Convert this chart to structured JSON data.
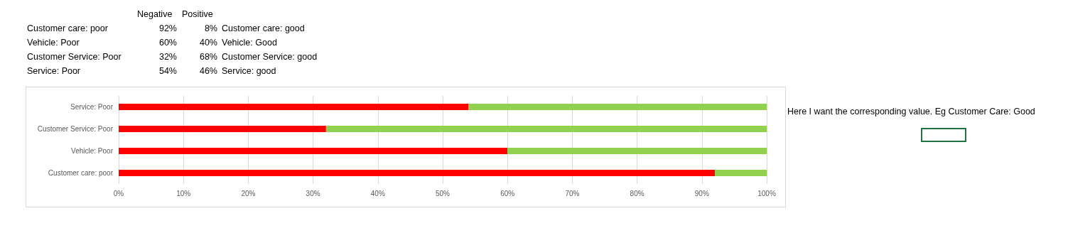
{
  "chart_data": [
    {
      "type": "other",
      "categories": [
        "Negative",
        "Positive",
        null
      ],
      "y_categories": [
        "Customer care: poor",
        "Vehicle: Poor",
        "Customer Service: Poor",
        "Service: Poor"
      ],
      "cell_labels": [
        [
          "92%",
          "8%",
          "Customer care: good"
        ],
        [
          "60%",
          "40%",
          "Vehicle: Good"
        ],
        [
          "32%",
          "68%",
          "Customer Service: good"
        ],
        [
          "54%",
          "46%",
          "Service: good"
        ]
      ]
    },
    {
      "type": "bar",
      "orientation": "horizontal",
      "stacked": true,
      "categories": [
        "Service: Poor",
        "Customer Service: Poor",
        "Vehicle: Poor",
        "Customer care: poor"
      ],
      "series": [
        {
          "color": "#ff0000",
          "values": [
            54,
            32,
            60,
            92
          ]
        },
        {
          "color": "#92d050",
          "values": [
            46,
            68,
            40,
            8
          ]
        }
      ],
      "xlim": [
        0,
        100
      ],
      "xticks": [
        {
          "value": 0,
          "label": "0%"
        },
        {
          "value": 10,
          "label": "10%"
        },
        {
          "value": 20,
          "label": "20%"
        },
        {
          "value": 30,
          "label": "30%"
        },
        {
          "value": 40,
          "label": "40%"
        },
        {
          "value": 50,
          "label": "50%"
        },
        {
          "value": 60,
          "label": "60%"
        },
        {
          "value": 70,
          "label": "70%"
        },
        {
          "value": 80,
          "label": "80%"
        },
        {
          "value": 90,
          "label": "90%"
        },
        {
          "value": 100,
          "label": "100%"
        }
      ],
      "grid": "x",
      "annotations": [
        "Here I want the corresponding value. Eg Customer Care: Good"
      ]
    }
  ]
}
